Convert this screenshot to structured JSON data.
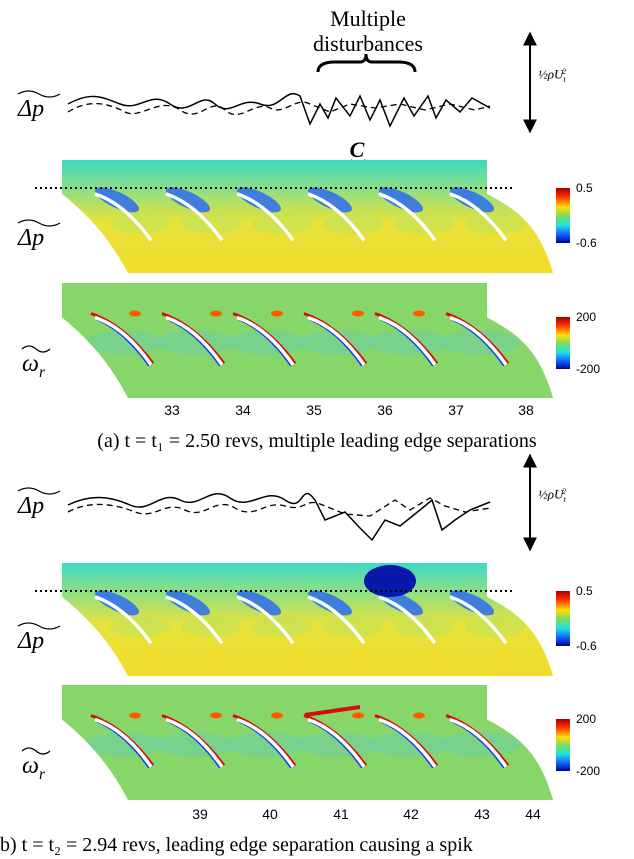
{
  "panel_a": {
    "annotation": [
      "Multiple",
      "disturbances"
    ],
    "arrow_label": "C",
    "scale_label": {
      "base": "½ρU",
      "sub": "t",
      "sup": "2"
    },
    "trace_label": "Δp",
    "pressure_label": "Δp",
    "pressure_colorbar": [
      0.5,
      -0.6
    ],
    "vorticity_label": {
      "base": "ω",
      "sub": "r"
    },
    "vorticity_colorbar": [
      200,
      -200
    ],
    "xticks": [
      33,
      34,
      35,
      36,
      37,
      38
    ],
    "caption": "(a) t = t₁ = 2.50 revs, multiple leading edge separations"
  },
  "panel_b": {
    "scale_label": {
      "base": "½ρU",
      "sub": "t",
      "sup": "2"
    },
    "trace_label": "Δp",
    "pressure_label": "Δp",
    "pressure_colorbar": [
      0.5,
      -0.6
    ],
    "vorticity_label": {
      "base": "ω",
      "sub": "r"
    },
    "vorticity_colorbar": [
      200,
      -200
    ],
    "xticks": [
      39,
      40,
      41,
      42,
      43,
      44
    ],
    "caption": "b) t = t₂ = 2.94 revs, leading edge separation causing a spik"
  }
}
